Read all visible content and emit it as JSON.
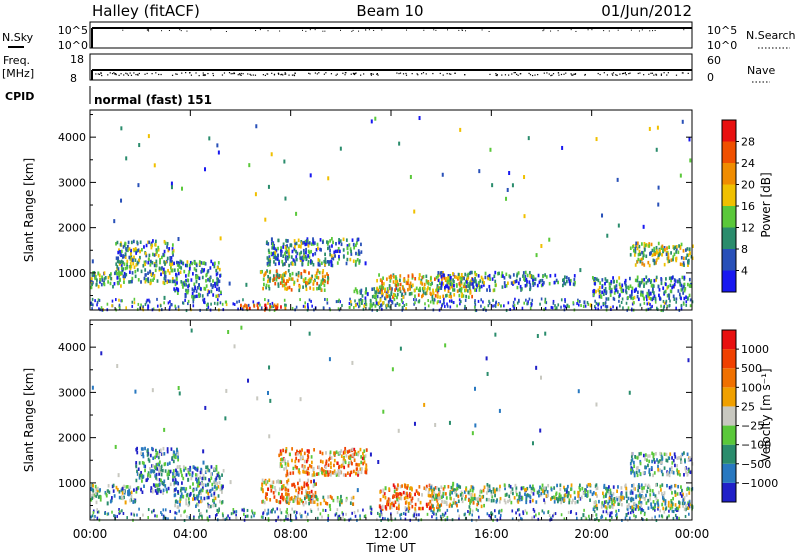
{
  "header": {
    "station": "Halley (fitACF)",
    "beam": "Beam 10",
    "date": "01/Jun/2012"
  },
  "params": {
    "nsky_label": "N.Sky",
    "nsky_ticks": [
      "10^5",
      "10^0"
    ],
    "nsearch_label": "N.Search",
    "nsearch_ticks": [
      "10^5",
      "10^0"
    ],
    "freq_label": "Freq.",
    "freq_unit": "[MHz]",
    "freq_ticks": [
      "18",
      "8"
    ],
    "nave_label": "Nave",
    "nave_ticks": [
      "60",
      "0"
    ],
    "cpid_label": "CPID",
    "cpid_text": "normal (fast) 151"
  },
  "chart_data": [
    {
      "type": "heatmap",
      "name": "power",
      "ylabel": "Slant Range [km]",
      "ylim": [
        180,
        4600
      ],
      "yticks": [
        1000,
        2000,
        3000,
        4000
      ],
      "xlim_hours": [
        0,
        24
      ],
      "colorbar": {
        "label": "Power [dB]",
        "ticks": [
          "4",
          "8",
          "12",
          "16",
          "20",
          "24",
          "28"
        ],
        "colors": [
          "#1818f0",
          "#2850b8",
          "#2a8c6c",
          "#5ac83a",
          "#f0c000",
          "#f08c00",
          "#f05000",
          "#e81010"
        ]
      },
      "regions": [
        {
          "t0": 0.0,
          "t1": 1.2,
          "r0": 700,
          "r1": 1050,
          "level": 0.35
        },
        {
          "t0": 1.0,
          "t1": 3.3,
          "r0": 800,
          "r1": 1750,
          "level": 0.35
        },
        {
          "t0": 3.3,
          "t1": 5.2,
          "r0": 500,
          "r1": 1300,
          "level": 0.25
        },
        {
          "t0": 6.7,
          "t1": 9.5,
          "r0": 650,
          "r1": 1100,
          "level": 0.55
        },
        {
          "t0": 7.0,
          "t1": 10.8,
          "r0": 1200,
          "r1": 1800,
          "level": 0.3
        },
        {
          "t0": 5.8,
          "t1": 7.8,
          "r0": 220,
          "r1": 330,
          "level": 0.85
        },
        {
          "t0": 10.5,
          "t1": 12.5,
          "r0": 300,
          "r1": 700,
          "level": 0.3
        },
        {
          "t0": 11.4,
          "t1": 15.2,
          "r0": 500,
          "r1": 1000,
          "level": 0.55
        },
        {
          "t0": 13.8,
          "t1": 17.6,
          "r0": 650,
          "r1": 1050,
          "level": 0.3
        },
        {
          "t0": 17.6,
          "t1": 19.3,
          "r0": 750,
          "r1": 1000,
          "level": 0.2
        },
        {
          "t0": 20.0,
          "t1": 24.0,
          "r0": 450,
          "r1": 950,
          "level": 0.25
        },
        {
          "t0": 21.5,
          "t1": 24.0,
          "r0": 1200,
          "r1": 1700,
          "level": 0.45
        }
      ]
    },
    {
      "type": "heatmap",
      "name": "velocity",
      "ylabel": "Slant Range [km]",
      "xlabel": "Time UT",
      "ylim": [
        180,
        4600
      ],
      "yticks": [
        1000,
        2000,
        3000,
        4000
      ],
      "xlim_hours": [
        0,
        24
      ],
      "xticks": [
        "00:00",
        "04:00",
        "08:00",
        "12:00",
        "16:00",
        "20:00",
        "00:00"
      ],
      "colorbar": {
        "label": "Velocity [m s⁻¹]",
        "ticks": [
          "1000",
          "500",
          "100",
          "25",
          "−25",
          "−100",
          "−500",
          "−1000"
        ],
        "colors": [
          "#2020c8",
          "#2878c0",
          "#2a8c6c",
          "#5ac83a",
          "#c8c8c0",
          "#f0a000",
          "#f07000",
          "#f04000",
          "#e81010"
        ]
      },
      "regions": [
        {
          "t0": 0.0,
          "t1": 1.8,
          "r0": 600,
          "r1": 1000,
          "level": 0.35
        },
        {
          "t0": 1.8,
          "t1": 3.5,
          "r0": 800,
          "r1": 1800,
          "level": 0.25
        },
        {
          "t0": 3.3,
          "t1": 5.3,
          "r0": 500,
          "r1": 1400,
          "level": 0.3
        },
        {
          "t0": 6.8,
          "t1": 9.0,
          "r0": 600,
          "r1": 1100,
          "level": 0.65
        },
        {
          "t0": 7.5,
          "t1": 11.0,
          "r0": 1200,
          "r1": 1800,
          "level": 0.65
        },
        {
          "t0": 7.8,
          "t1": 10.5,
          "r0": 550,
          "r1": 750,
          "level": 0.5
        },
        {
          "t0": 11.5,
          "t1": 14.0,
          "r0": 450,
          "r1": 1000,
          "level": 0.7
        },
        {
          "t0": 13.5,
          "t1": 16.0,
          "r0": 500,
          "r1": 1000,
          "level": 0.45
        },
        {
          "t0": 16.0,
          "t1": 20.0,
          "r0": 600,
          "r1": 1000,
          "level": 0.35
        },
        {
          "t0": 20.0,
          "t1": 24.0,
          "r0": 450,
          "r1": 1000,
          "level": 0.35
        },
        {
          "t0": 21.5,
          "t1": 24.0,
          "r0": 1200,
          "r1": 1700,
          "level": 0.3
        }
      ]
    }
  ]
}
